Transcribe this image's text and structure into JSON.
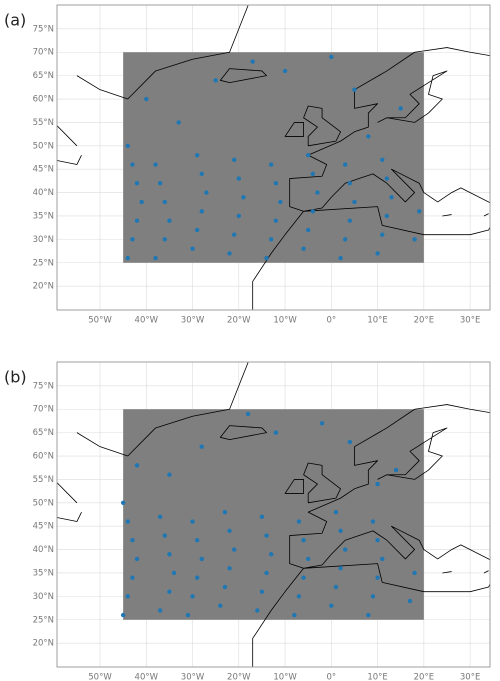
{
  "chart_data": [
    {
      "type": "scatter",
      "title": "(a)",
      "color": "#1f77b4",
      "region_color": "#7f7f7f",
      "region": {
        "lon": [
          -45,
          20
        ],
        "lat": [
          25,
          70
        ]
      },
      "xlim": [
        -59.3,
        34.3
      ],
      "ylim": [
        14.9,
        80.1
      ],
      "xticks": [
        {
          "value": -50,
          "label": "50°W"
        },
        {
          "value": -40,
          "label": "40°W"
        },
        {
          "value": -30,
          "label": "30°W"
        },
        {
          "value": -20,
          "label": "20°W"
        },
        {
          "value": -10,
          "label": "10°W"
        },
        {
          "value": 0,
          "label": "0°"
        },
        {
          "value": 10,
          "label": "10°E"
        },
        {
          "value": 20,
          "label": "20°E"
        },
        {
          "value": 30,
          "label": "30°E"
        }
      ],
      "yticks": [
        {
          "value": 20,
          "label": "20°N"
        },
        {
          "value": 25,
          "label": "25°N"
        },
        {
          "value": 30,
          "label": "30°N"
        },
        {
          "value": 35,
          "label": "35°N"
        },
        {
          "value": 40,
          "label": "40°N"
        },
        {
          "value": 45,
          "label": "45°N"
        },
        {
          "value": 50,
          "label": "50°N"
        },
        {
          "value": 55,
          "label": "55°N"
        },
        {
          "value": 60,
          "label": "60°N"
        },
        {
          "value": 65,
          "label": "65°N"
        },
        {
          "value": 70,
          "label": "70°N"
        },
        {
          "value": 75,
          "label": "75°N"
        }
      ],
      "x": [
        -44,
        -43,
        -42,
        -41,
        -42,
        -43,
        -44,
        -38,
        -36,
        -35,
        -36,
        -37,
        -38,
        -30,
        -29,
        -28,
        -27,
        -28,
        -29,
        -22,
        -21,
        -20,
        -19,
        -20,
        -21,
        -14,
        -13,
        -12,
        -11,
        -12,
        -13,
        -6,
        -5,
        -4,
        -3,
        -4,
        -5,
        2,
        3,
        4,
        5,
        4,
        3,
        10,
        11,
        12,
        13,
        12,
        11,
        18,
        19,
        -40,
        -25,
        -10,
        5,
        15,
        -33,
        -17,
        0,
        8
      ],
      "y": [
        26,
        30,
        34,
        38,
        42,
        46,
        50,
        26,
        30,
        34,
        38,
        42,
        46,
        28,
        32,
        36,
        40,
        44,
        48,
        27,
        31,
        35,
        39,
        43,
        47,
        26,
        30,
        34,
        38,
        42,
        46,
        28,
        32,
        36,
        40,
        44,
        48,
        26,
        30,
        34,
        38,
        42,
        46,
        27,
        31,
        35,
        39,
        43,
        47,
        30,
        36,
        60,
        64,
        66,
        62,
        58,
        55,
        68,
        69,
        52
      ]
    },
    {
      "type": "scatter",
      "title": "(b)",
      "color": "#1f77b4",
      "region_color": "#7f7f7f",
      "region": {
        "lon": [
          -45,
          20
        ],
        "lat": [
          25,
          70
        ]
      },
      "xlim": [
        -59.3,
        34.3
      ],
      "ylim": [
        14.9,
        80.1
      ],
      "xticks": [
        {
          "value": -50,
          "label": "50°W"
        },
        {
          "value": -40,
          "label": "40°W"
        },
        {
          "value": -30,
          "label": "30°W"
        },
        {
          "value": -20,
          "label": "20°W"
        },
        {
          "value": -10,
          "label": "10°W"
        },
        {
          "value": 0,
          "label": "0°"
        },
        {
          "value": 10,
          "label": "10°E"
        },
        {
          "value": 20,
          "label": "20°E"
        },
        {
          "value": 30,
          "label": "30°E"
        }
      ],
      "yticks": [
        {
          "value": 20,
          "label": "20°N"
        },
        {
          "value": 25,
          "label": "25°N"
        },
        {
          "value": 30,
          "label": "30°N"
        },
        {
          "value": 35,
          "label": "35°N"
        },
        {
          "value": 40,
          "label": "40°N"
        },
        {
          "value": 45,
          "label": "45°N"
        },
        {
          "value": 50,
          "label": "50°N"
        },
        {
          "value": 55,
          "label": "55°N"
        },
        {
          "value": 60,
          "label": "60°N"
        },
        {
          "value": 65,
          "label": "65°N"
        },
        {
          "value": 70,
          "label": "70°N"
        },
        {
          "value": 75,
          "label": "75°N"
        }
      ],
      "x": [
        -45,
        -44,
        -43,
        -42,
        -43,
        -44,
        -45,
        -37,
        -35,
        -34,
        -35,
        -36,
        -37,
        -31,
        -30,
        -29,
        -28,
        -29,
        -30,
        -24,
        -23,
        -22,
        -21,
        -22,
        -23,
        -16,
        -15,
        -14,
        -13,
        -14,
        -15,
        -8,
        -7,
        -6,
        -5,
        -6,
        -7,
        0,
        1,
        2,
        3,
        2,
        1,
        8,
        9,
        10,
        11,
        10,
        9,
        17,
        18,
        -42,
        -28,
        -12,
        4,
        14,
        -35,
        -18,
        -2,
        10
      ],
      "y": [
        26,
        30,
        34,
        38,
        42,
        46,
        50,
        27,
        31,
        35,
        39,
        43,
        47,
        26,
        30,
        34,
        38,
        42,
        46,
        28,
        32,
        36,
        40,
        44,
        48,
        27,
        31,
        35,
        39,
        43,
        47,
        26,
        30,
        34,
        38,
        42,
        46,
        28,
        32,
        36,
        40,
        44,
        48,
        26,
        30,
        34,
        38,
        42,
        46,
        29,
        35,
        58,
        62,
        65,
        63,
        57,
        56,
        69,
        67,
        54
      ]
    }
  ]
}
